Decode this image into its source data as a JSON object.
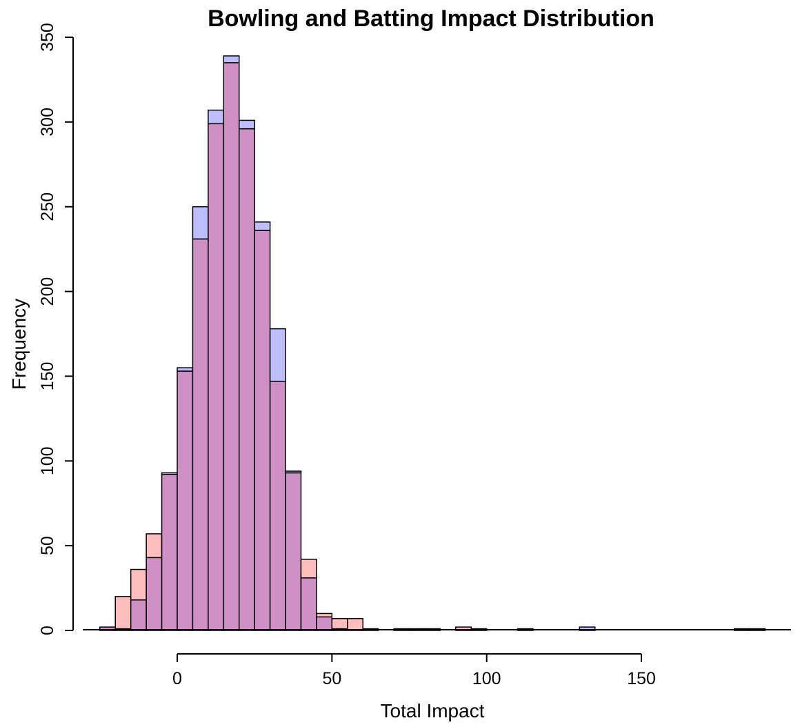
{
  "chart_data": {
    "type": "bar",
    "title": "Bowling and Batting Impact Distribution",
    "xlabel": "Total Impact",
    "ylabel": "Frequency",
    "xlim": [
      -25,
      190
    ],
    "ylim": [
      0,
      350
    ],
    "bin_width": 5,
    "x_ticks": [
      "0",
      "50",
      "100",
      "150"
    ],
    "y_ticks": [
      "0",
      "50",
      "100",
      "150",
      "200",
      "250",
      "300",
      "350"
    ],
    "grid": false,
    "legend": "none",
    "colors": {
      "series_a": "#bebefc",
      "series_b": "#ffbebe",
      "overlap": "#cf90c5",
      "outline": "#000000"
    },
    "series": [
      {
        "bin_start": [
          -25,
          -20,
          -15,
          -10,
          -5,
          0,
          5,
          10,
          15,
          20,
          25,
          30,
          35,
          40,
          45,
          50,
          55,
          60,
          70,
          75,
          80,
          95,
          110,
          130,
          180,
          185
        ],
        "values": [
          2,
          1,
          18,
          43,
          93,
          155,
          250,
          307,
          339,
          301,
          241,
          178,
          94,
          31,
          8,
          1,
          0,
          1,
          1,
          1,
          1,
          1,
          1,
          2,
          1,
          1
        ]
      },
      {
        "bin_start": [
          -25,
          -20,
          -15,
          -10,
          -5,
          0,
          5,
          10,
          15,
          20,
          25,
          30,
          35,
          40,
          45,
          50,
          55,
          60,
          70,
          75,
          80,
          90,
          110,
          180,
          185
        ],
        "values": [
          2,
          20,
          36,
          57,
          92,
          153,
          231,
          299,
          335,
          296,
          236,
          147,
          93,
          42,
          10,
          7,
          7,
          1,
          1,
          1,
          1,
          2,
          1,
          1,
          1
        ]
      }
    ]
  }
}
